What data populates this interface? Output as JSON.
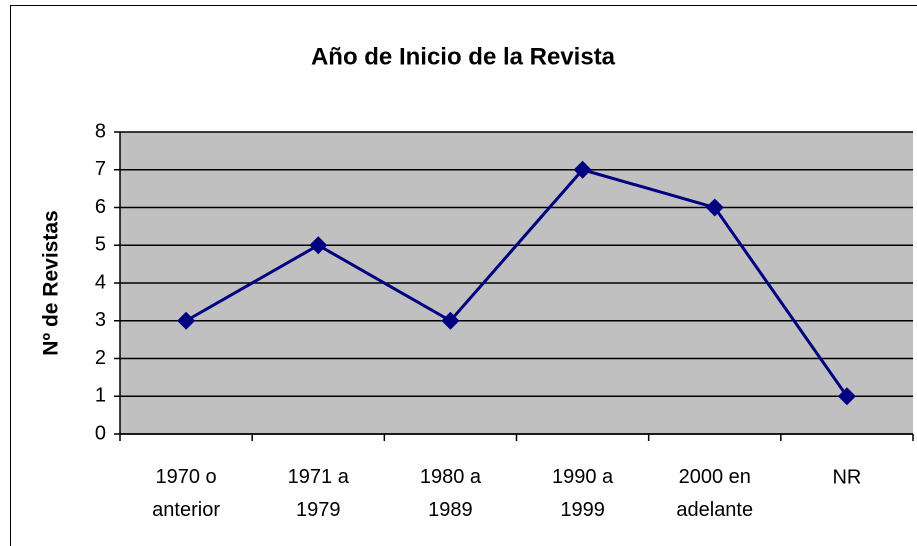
{
  "chart_data": {
    "type": "line",
    "title": "Año de Inicio de la Revista",
    "y_label": "Nº de Revistas",
    "categories": [
      "1970 o anterior",
      "1971 a 1979",
      "1980 a 1989",
      "1990 a 1999",
      "2000 en adelante",
      "NR"
    ],
    "values": [
      3,
      5,
      3,
      7,
      6,
      1
    ],
    "color": "#000080",
    "ylim": [
      0,
      8
    ],
    "yticks": [
      0,
      1,
      2,
      3,
      4,
      5,
      6,
      7,
      8
    ],
    "grid": true,
    "plot_background": "#c0c0c0"
  }
}
